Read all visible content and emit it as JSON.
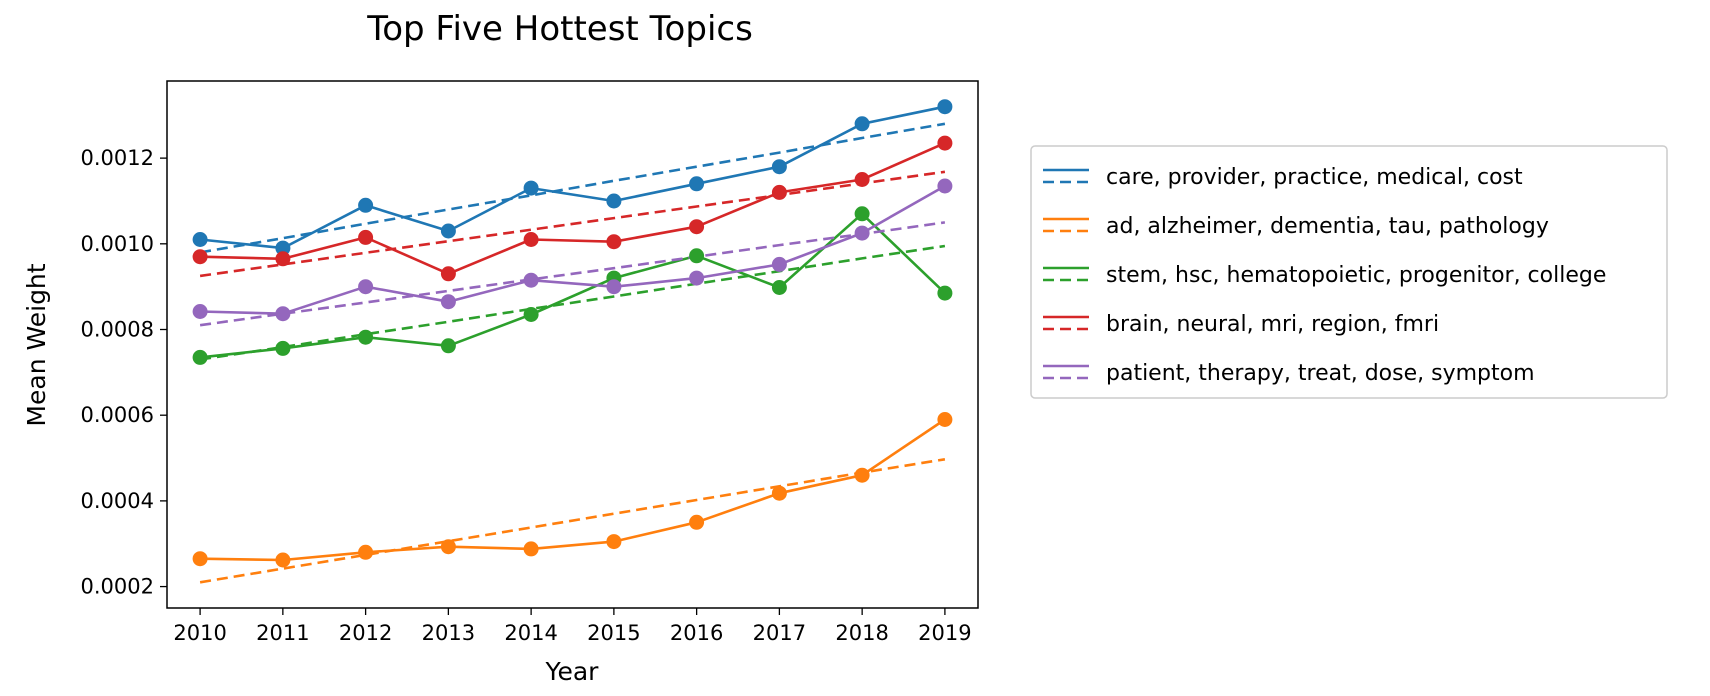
{
  "chart_data": {
    "type": "line",
    "title": "Top Five Hottest Topics",
    "xlabel": "Year",
    "ylabel": "Mean Weight",
    "x": [
      2010,
      2011,
      2012,
      2013,
      2014,
      2015,
      2016,
      2017,
      2018,
      2019
    ],
    "xlim": [
      2009.6,
      2019.4
    ],
    "ylim": [
      0.00015,
      0.00138
    ],
    "yticks": [
      0.0002,
      0.0004,
      0.0006,
      0.0008,
      0.001,
      0.0012
    ],
    "ytick_labels": [
      "0.0002",
      "0.0004",
      "0.0006",
      "0.0008",
      "0.0010",
      "0.0012"
    ],
    "xtick_labels": [
      "2010",
      "2011",
      "2012",
      "2013",
      "2014",
      "2015",
      "2016",
      "2017",
      "2018",
      "2019"
    ],
    "grid": false,
    "legend_position": "outside-right",
    "series": [
      {
        "name": "care, provider, practice, medical, cost",
        "color": "#1f77b4",
        "values": [
          0.00101,
          0.00099,
          0.00109,
          0.00103,
          0.00113,
          0.0011,
          0.00114,
          0.00118,
          0.00128,
          0.00132
        ],
        "trend": [
          0.00098,
          0.001013,
          0.001047,
          0.00108,
          0.001113,
          0.001147,
          0.00118,
          0.001213,
          0.001247,
          0.00128
        ]
      },
      {
        "name": "ad, alzheimer, dementia, tau, pathology",
        "color": "#ff7f0e",
        "values": [
          0.000265,
          0.000262,
          0.00028,
          0.000293,
          0.000288,
          0.000305,
          0.00035,
          0.000418,
          0.00046,
          0.00059
        ],
        "trend": [
          0.00021,
          0.000242,
          0.000274,
          0.000306,
          0.000338,
          0.00037,
          0.000402,
          0.000434,
          0.000466,
          0.000497
        ]
      },
      {
        "name": "stem, hsc, hematopoietic, progenitor, college",
        "color": "#2ca02c",
        "values": [
          0.000735,
          0.000756,
          0.000782,
          0.000762,
          0.000835,
          0.00092,
          0.000972,
          0.000898,
          0.00107,
          0.000885
        ],
        "trend": [
          0.00073,
          0.000759,
          0.000789,
          0.000818,
          0.000848,
          0.000877,
          0.000907,
          0.000936,
          0.000966,
          0.000995
        ]
      },
      {
        "name": "brain, neural, mri, region, fmri",
        "color": "#d62728",
        "values": [
          0.00097,
          0.000965,
          0.001015,
          0.00093,
          0.00101,
          0.001005,
          0.00104,
          0.00112,
          0.00115,
          0.001235
        ],
        "trend": [
          0.000925,
          0.000952,
          0.000979,
          0.001006,
          0.001033,
          0.00106,
          0.001087,
          0.001114,
          0.001141,
          0.001168
        ]
      },
      {
        "name": "patient, therapy, treat, dose, symptom",
        "color": "#9467bd",
        "values": [
          0.000842,
          0.000837,
          0.0009,
          0.000865,
          0.000915,
          0.0009,
          0.00092,
          0.000952,
          0.001025,
          0.001135
        ],
        "trend": [
          0.00081,
          0.000837,
          0.000863,
          0.00089,
          0.000917,
          0.000943,
          0.00097,
          0.000997,
          0.001023,
          0.00105
        ]
      }
    ]
  }
}
